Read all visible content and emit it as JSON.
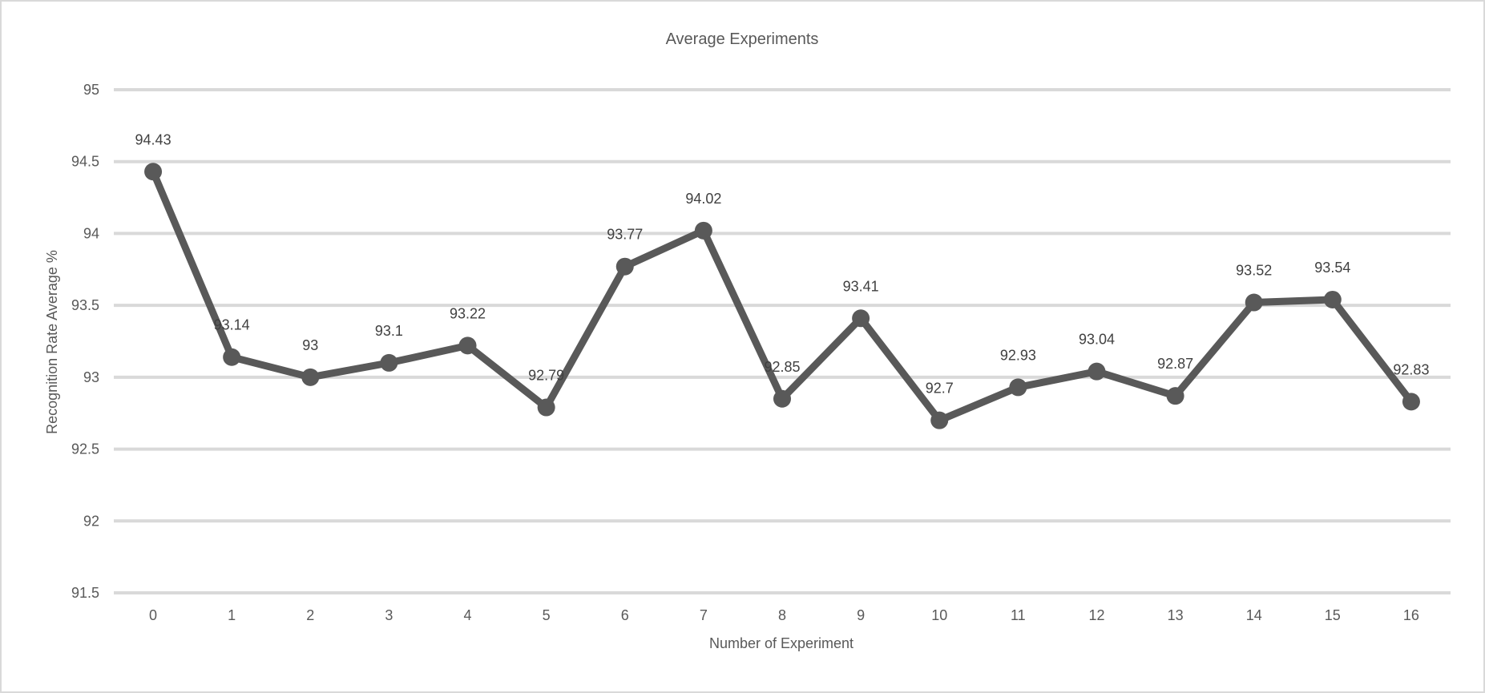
{
  "chart_data": {
    "type": "line",
    "title": "Average Experiments",
    "xlabel": "Number of Experiment",
    "ylabel": "Recognition Rate Average %",
    "categories": [
      "0",
      "1",
      "2",
      "3",
      "4",
      "5",
      "6",
      "7",
      "8",
      "9",
      "10",
      "11",
      "12",
      "13",
      "14",
      "15",
      "16"
    ],
    "series": [
      {
        "name": "Recognition Rate Average %",
        "values": [
          94.43,
          93.14,
          93,
          93.1,
          93.22,
          92.79,
          93.77,
          94.02,
          92.85,
          93.41,
          92.7,
          92.93,
          93.04,
          92.87,
          93.52,
          93.54,
          92.83
        ]
      }
    ],
    "ylim": [
      91.5,
      95
    ],
    "yticks": [
      "91.5",
      "92",
      "92.5",
      "93",
      "93.5",
      "94",
      "94.5",
      "95"
    ],
    "grid": true,
    "legend": "none",
    "colors": {
      "series": "#595959",
      "grid": "#d9d9d9",
      "text": "#595959"
    }
  }
}
